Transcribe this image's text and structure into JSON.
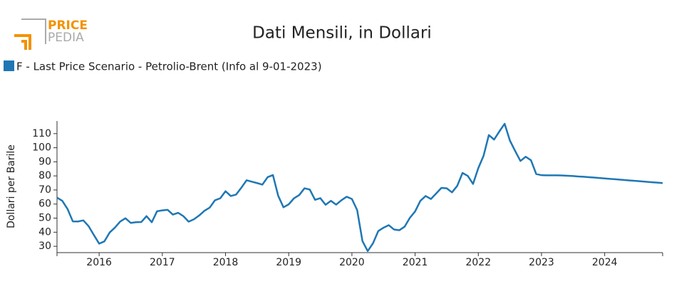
{
  "logo": {
    "top": "PRICE",
    "bottom": "PEDIA"
  },
  "chart_data": {
    "type": "line",
    "title": "Dati Mensili, in Dollari",
    "y_label": "Dollari per Barile",
    "x": [
      "2015-05",
      "2015-06",
      "2015-07",
      "2015-08",
      "2015-09",
      "2015-10",
      "2015-11",
      "2015-12",
      "2016-01",
      "2016-02",
      "2016-03",
      "2016-04",
      "2016-05",
      "2016-06",
      "2016-07",
      "2016-08",
      "2016-09",
      "2016-10",
      "2016-11",
      "2016-12",
      "2017-01",
      "2017-02",
      "2017-03",
      "2017-04",
      "2017-05",
      "2017-06",
      "2017-07",
      "2017-08",
      "2017-09",
      "2017-10",
      "2017-11",
      "2017-12",
      "2018-01",
      "2018-02",
      "2018-03",
      "2018-04",
      "2018-05",
      "2018-06",
      "2018-07",
      "2018-08",
      "2018-09",
      "2018-10",
      "2018-11",
      "2018-12",
      "2019-01",
      "2019-02",
      "2019-03",
      "2019-04",
      "2019-05",
      "2019-06",
      "2019-07",
      "2019-08",
      "2019-09",
      "2019-10",
      "2019-11",
      "2019-12",
      "2020-01",
      "2020-02",
      "2020-03",
      "2020-04",
      "2020-05",
      "2020-06",
      "2020-07",
      "2020-08",
      "2020-09",
      "2020-10",
      "2020-11",
      "2020-12",
      "2021-01",
      "2021-02",
      "2021-03",
      "2021-04",
      "2021-05",
      "2021-06",
      "2021-07",
      "2021-08",
      "2021-09",
      "2021-10",
      "2021-11",
      "2021-12",
      "2022-01",
      "2022-02",
      "2022-03",
      "2022-04",
      "2022-05",
      "2022-06",
      "2022-07",
      "2022-08",
      "2022-09",
      "2022-10",
      "2022-11",
      "2022-12",
      "2023-01",
      "2023-02",
      "2023-03",
      "2023-04",
      "2023-05",
      "2023-06",
      "2023-07",
      "2023-08",
      "2023-09",
      "2023-10",
      "2023-11",
      "2023-12",
      "2024-01",
      "2024-02",
      "2024-03",
      "2024-04",
      "2024-05",
      "2024-06",
      "2024-07",
      "2024-08",
      "2024-09",
      "2024-10",
      "2024-11",
      "2024-12"
    ],
    "series": [
      {
        "name": "F - Last Price Scenario - Petrolio-Brent (Info al 9-01-2023)",
        "color": "#1f77b4",
        "values": [
          64.6,
          62.3,
          56.5,
          47.7,
          47.6,
          48.4,
          44.3,
          38.0,
          31.9,
          33.5,
          39.8,
          43.3,
          47.6,
          49.9,
          46.6,
          47.1,
          47.2,
          51.4,
          47.1,
          54.9,
          55.5,
          55.9,
          52.5,
          53.8,
          51.4,
          47.5,
          49.2,
          51.9,
          55.2,
          57.5,
          62.7,
          64.1,
          69.1,
          65.7,
          66.7,
          71.6,
          76.9,
          75.9,
          74.9,
          73.8,
          79.1,
          80.6,
          65.9,
          57.7,
          59.8,
          64.1,
          66.4,
          71.2,
          70.3,
          63.0,
          64.2,
          59.5,
          62.3,
          59.6,
          62.7,
          65.2,
          63.6,
          55.7,
          33.7,
          26.6,
          32.1,
          40.8,
          43.2,
          45.0,
          41.9,
          41.4,
          43.9,
          50.2,
          54.8,
          62.3,
          65.7,
          63.6,
          67.5,
          71.5,
          71.2,
          68.3,
          72.9,
          82.1,
          80.0,
          74.3,
          85.5,
          94.3,
          109.0,
          105.8,
          111.6,
          117.0,
          105.1,
          97.7,
          90.6,
          93.6,
          91.1,
          81.3,
          80.5,
          80.4,
          80.4,
          80.4,
          80.3,
          80.1,
          79.9,
          79.6,
          79.4,
          79.1,
          78.8,
          78.5,
          78.2,
          77.9,
          77.6,
          77.3,
          77.0,
          76.7,
          76.4,
          76.1,
          75.8,
          75.5,
          75.2,
          74.9
        ]
      }
    ],
    "xlim": [
      "2015-05",
      "2024-12"
    ],
    "xticks": [
      "2016",
      "2017",
      "2018",
      "2019",
      "2020",
      "2021",
      "2022",
      "2023",
      "2024"
    ],
    "ylim": [
      25.5,
      119
    ],
    "yticks": [
      30,
      40,
      50,
      60,
      70,
      80,
      90,
      100,
      110
    ],
    "grid": false
  }
}
